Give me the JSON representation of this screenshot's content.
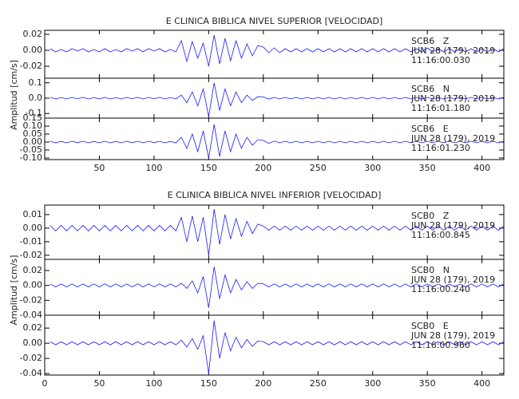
{
  "chart_data": [
    {
      "type": "line",
      "title": "E CLINICA BIBLICA NIVEL SUPERIOR [VELOCIDAD]",
      "ylabel": "Amplitud [cm/s]",
      "xlim": [
        0,
        420
      ],
      "xticks": [
        50,
        100,
        150,
        200,
        250,
        300,
        350,
        400
      ],
      "x": [
        5,
        10,
        15,
        20,
        25,
        30,
        35,
        40,
        45,
        50,
        55,
        60,
        65,
        70,
        75,
        80,
        85,
        90,
        95,
        100,
        105,
        110,
        115,
        120,
        125,
        130,
        135,
        140,
        145,
        150,
        155,
        160,
        165,
        170,
        175,
        180,
        185,
        190,
        195,
        200,
        205,
        210,
        215,
        220,
        225,
        230,
        235,
        240,
        245,
        250,
        255,
        260,
        265,
        270,
        275,
        280,
        285,
        290,
        295,
        300,
        305,
        310,
        315,
        320,
        325,
        330,
        335,
        340,
        345,
        350,
        355,
        360,
        365,
        370,
        375,
        380,
        385,
        390,
        395,
        400,
        405,
        410,
        415,
        420
      ],
      "subplots": [
        {
          "station": "SCB6   Z",
          "date": "JUN 28 (179), 2019",
          "time": "11:16:00.030",
          "color": "#1a1aff",
          "ylim": [
            -0.035,
            0.025
          ],
          "yticks": [
            {
              "value": -0.02,
              "label": "-0.02"
            },
            {
              "value": 0,
              "label": "0.00"
            },
            0.02
          ],
          "values": [
            0.002,
            -0.002,
            0.001,
            -0.002,
            0.002,
            -0.001,
            0.002,
            -0.002,
            0.001,
            -0.002,
            0.002,
            -0.002,
            0.001,
            -0.002,
            0.002,
            -0.001,
            0.002,
            -0.002,
            0.002,
            -0.001,
            0.002,
            -0.002,
            0.001,
            -0.002,
            0.012,
            -0.014,
            0.011,
            -0.01,
            0.009,
            -0.02,
            0.019,
            -0.017,
            0.015,
            -0.013,
            0.012,
            -0.01,
            0.008,
            -0.007,
            0.006,
            0.004,
            -0.003,
            0.003,
            -0.003,
            0.002,
            -0.002,
            0.002,
            -0.002,
            0.002,
            -0.002,
            0.002,
            -0.002,
            0.002,
            -0.002,
            0.002,
            -0.002,
            0.002,
            -0.002,
            0.002,
            -0.002,
            0.002,
            -0.002,
            0.002,
            -0.002,
            0.002,
            -0.002,
            0.002,
            -0.002,
            0.002,
            -0.002,
            0.003,
            -0.002,
            0.002,
            -0.002,
            0.002,
            -0.002,
            0.002,
            -0.002,
            0.002,
            -0.002,
            0.002,
            -0.002,
            0.002,
            -0.002,
            0.002
          ]
        },
        {
          "station": "SCB6   N",
          "date": "JUN 28 (179), 2019",
          "time": "11:16:01.180",
          "color": "#1a1aff",
          "ylim": [
            -0.13,
            0.13
          ],
          "yticks": [
            -0.1,
            {
              "value": 0,
              "label": "0.0"
            },
            0.1
          ],
          "values": [
            0.005,
            -0.005,
            0.004,
            -0.005,
            0.005,
            -0.004,
            0.005,
            -0.005,
            0.004,
            -0.005,
            0.005,
            -0.005,
            0.004,
            -0.005,
            0.005,
            -0.004,
            0.005,
            -0.005,
            0.005,
            -0.004,
            0.005,
            -0.005,
            0.004,
            -0.005,
            0.02,
            -0.03,
            0.04,
            -0.05,
            0.06,
            -0.12,
            0.1,
            -0.08,
            0.06,
            -0.05,
            0.04,
            -0.03,
            0.02,
            -0.015,
            0.01,
            0.008,
            -0.006,
            0.005,
            -0.005,
            0.005,
            -0.005,
            0.005,
            -0.005,
            0.005,
            -0.005,
            0.005,
            -0.005,
            0.005,
            -0.005,
            0.005,
            -0.005,
            0.005,
            -0.005,
            0.005,
            -0.005,
            0.005,
            -0.005,
            0.005,
            -0.005,
            0.005,
            -0.005,
            0.005,
            -0.005,
            0.005,
            -0.005,
            0.005,
            -0.005,
            0.005,
            -0.005,
            0.005,
            -0.005,
            0.005,
            -0.005,
            0.005,
            -0.005,
            0.005,
            -0.005,
            0.005,
            -0.005,
            0.005
          ]
        },
        {
          "station": "SCB6   E",
          "date": "JUN 28 (179), 2019",
          "time": "11:16:01.230",
          "color": "#1a1aff",
          "ylim": [
            -0.11,
            0.15
          ],
          "yticks": [
            {
              "value": -0.1,
              "label": "-0.10"
            },
            -0.05,
            {
              "value": 0,
              "label": "0.00"
            },
            0.05,
            {
              "value": 0.1,
              "label": "0.10"
            },
            0.15
          ],
          "values": [
            0.005,
            -0.005,
            0.004,
            -0.005,
            0.005,
            -0.004,
            0.005,
            -0.005,
            0.004,
            -0.005,
            0.005,
            -0.005,
            0.004,
            -0.005,
            0.005,
            -0.004,
            0.005,
            -0.005,
            0.005,
            -0.004,
            0.005,
            -0.005,
            0.004,
            -0.005,
            0.03,
            -0.04,
            0.05,
            -0.06,
            0.07,
            -0.1,
            0.11,
            -0.09,
            0.07,
            -0.06,
            0.05,
            -0.04,
            0.03,
            -0.02,
            0.015,
            0.01,
            -0.008,
            0.006,
            -0.005,
            0.005,
            -0.005,
            0.005,
            -0.005,
            0.005,
            -0.005,
            0.005,
            -0.005,
            0.005,
            -0.005,
            0.005,
            -0.005,
            0.005,
            -0.005,
            0.005,
            -0.005,
            0.005,
            -0.005,
            0.005,
            -0.005,
            0.005,
            -0.005,
            0.005,
            -0.005,
            0.005,
            -0.005,
            0.005,
            -0.005,
            0.005,
            -0.005,
            0.005,
            -0.005,
            0.005,
            -0.005,
            0.005,
            -0.005,
            0.005,
            -0.005,
            0.005,
            -0.005,
            0.005
          ]
        }
      ]
    },
    {
      "type": "line",
      "title": "E CLINICA BIBLICA NIVEL INFERIOR [VELOCIDAD]",
      "ylabel": "Amplitud [cm/s]",
      "xlim": [
        0,
        420
      ],
      "xticks": [
        0,
        50,
        100,
        150,
        200,
        250,
        300,
        350,
        400
      ],
      "x": [
        5,
        10,
        15,
        20,
        25,
        30,
        35,
        40,
        45,
        50,
        55,
        60,
        65,
        70,
        75,
        80,
        85,
        90,
        95,
        100,
        105,
        110,
        115,
        120,
        125,
        130,
        135,
        140,
        145,
        150,
        155,
        160,
        165,
        170,
        175,
        180,
        185,
        190,
        195,
        200,
        205,
        210,
        215,
        220,
        225,
        230,
        235,
        240,
        245,
        250,
        255,
        260,
        265,
        270,
        275,
        280,
        285,
        290,
        295,
        300,
        305,
        310,
        315,
        320,
        325,
        330,
        335,
        340,
        345,
        350,
        355,
        360,
        365,
        370,
        375,
        380,
        385,
        390,
        395,
        400,
        405,
        410,
        415,
        420
      ],
      "subplots": [
        {
          "station": "SCB0   Z",
          "date": "JUN 28 (179), 2019",
          "time": "11:16:00.845",
          "color": "#1a1aff",
          "ylim": [
            -0.023,
            0.017
          ],
          "yticks": [
            -0.02,
            -0.01,
            {
              "value": 0,
              "label": "0.00"
            },
            0.01
          ],
          "values": [
            0.002,
            -0.002,
            0.002,
            -0.002,
            0.002,
            -0.002,
            0.002,
            -0.002,
            0.002,
            -0.002,
            0.002,
            -0.002,
            0.002,
            -0.002,
            0.002,
            -0.002,
            0.002,
            -0.002,
            0.002,
            -0.002,
            0.002,
            -0.002,
            0.002,
            -0.002,
            0.008,
            -0.01,
            0.009,
            -0.01,
            0.008,
            -0.02,
            0.014,
            -0.012,
            0.01,
            -0.008,
            0.007,
            -0.006,
            0.005,
            -0.004,
            0.003,
            0.0015,
            -0.0015,
            0.0015,
            -0.0015,
            0.0015,
            -0.0015,
            0.0015,
            -0.0015,
            0.0015,
            -0.0015,
            0.0015,
            -0.0015,
            0.0015,
            -0.0015,
            0.0015,
            -0.0015,
            0.0015,
            -0.0015,
            0.0015,
            -0.0015,
            0.0015,
            -0.0015,
            0.0015,
            -0.0015,
            0.0015,
            -0.0015,
            0.0015,
            -0.0015,
            0.0015,
            -0.0015,
            0.0015,
            -0.0015,
            0.0015,
            -0.0015,
            0.0015,
            -0.0015,
            0.0015,
            -0.0015,
            0.0015,
            -0.0015,
            0.0015,
            -0.0015,
            0.0015,
            -0.0015,
            0.0015
          ]
        },
        {
          "station": "SCB0   N",
          "date": "JUN 28 (179), 2019",
          "time": "11:16:00.240",
          "color": "#1a1aff",
          "ylim": [
            -0.04,
            0.035
          ],
          "yticks": [
            -0.04,
            -0.02,
            {
              "value": 0,
              "label": "0.00"
            },
            0.02
          ],
          "values": [
            0.002,
            -0.002,
            0.002,
            -0.002,
            0.002,
            -0.002,
            0.002,
            -0.002,
            0.002,
            -0.002,
            0.002,
            -0.002,
            0.002,
            -0.002,
            0.002,
            -0.002,
            0.002,
            -0.002,
            0.002,
            -0.002,
            0.002,
            -0.002,
            0.002,
            -0.002,
            0.003,
            -0.004,
            0.006,
            -0.01,
            0.012,
            -0.03,
            0.025,
            -0.018,
            0.014,
            -0.01,
            0.008,
            -0.006,
            0.005,
            -0.004,
            0.003,
            0.002,
            -0.002,
            0.002,
            -0.002,
            0.002,
            -0.002,
            0.002,
            -0.002,
            0.002,
            -0.002,
            0.002,
            -0.002,
            0.002,
            -0.002,
            0.002,
            -0.002,
            0.002,
            -0.002,
            0.002,
            -0.002,
            0.002,
            -0.002,
            0.002,
            -0.002,
            0.002,
            -0.002,
            0.002,
            -0.002,
            0.002,
            -0.002,
            0.002,
            -0.002,
            0.002,
            -0.002,
            0.002,
            -0.002,
            0.002,
            -0.002,
            0.002,
            -0.002,
            0.002,
            -0.002,
            0.002,
            -0.002,
            0.002
          ]
        },
        {
          "station": "SCB0   E",
          "date": "JUN 28 (179), 2019",
          "time": "11:16:00.960",
          "color": "#1a1aff",
          "ylim": [
            -0.042,
            0.037
          ],
          "yticks": [
            -0.04,
            -0.02,
            {
              "value": 0,
              "label": "0.00"
            },
            0.02
          ],
          "values": [
            0.002,
            -0.002,
            0.002,
            -0.002,
            0.002,
            -0.002,
            0.002,
            -0.002,
            0.002,
            -0.002,
            0.002,
            -0.002,
            0.002,
            -0.002,
            0.002,
            -0.002,
            0.002,
            -0.002,
            0.002,
            -0.002,
            0.002,
            -0.002,
            0.002,
            -0.002,
            0.004,
            -0.005,
            0.006,
            -0.008,
            0.01,
            -0.04,
            0.03,
            -0.02,
            0.014,
            -0.01,
            0.008,
            -0.006,
            0.005,
            -0.004,
            0.003,
            0.002,
            -0.002,
            0.002,
            -0.002,
            0.002,
            -0.002,
            0.002,
            -0.002,
            0.002,
            -0.002,
            0.002,
            -0.002,
            0.002,
            -0.002,
            0.002,
            -0.002,
            0.002,
            -0.002,
            0.002,
            -0.002,
            0.002,
            -0.002,
            0.002,
            -0.002,
            0.002,
            -0.002,
            0.002,
            -0.002,
            0.002,
            -0.002,
            0.002,
            -0.002,
            0.002,
            -0.002,
            0.002,
            -0.002,
            0.002,
            -0.002,
            0.002,
            -0.002,
            0.002,
            -0.002,
            0.002,
            -0.002,
            0.002
          ]
        }
      ]
    }
  ]
}
